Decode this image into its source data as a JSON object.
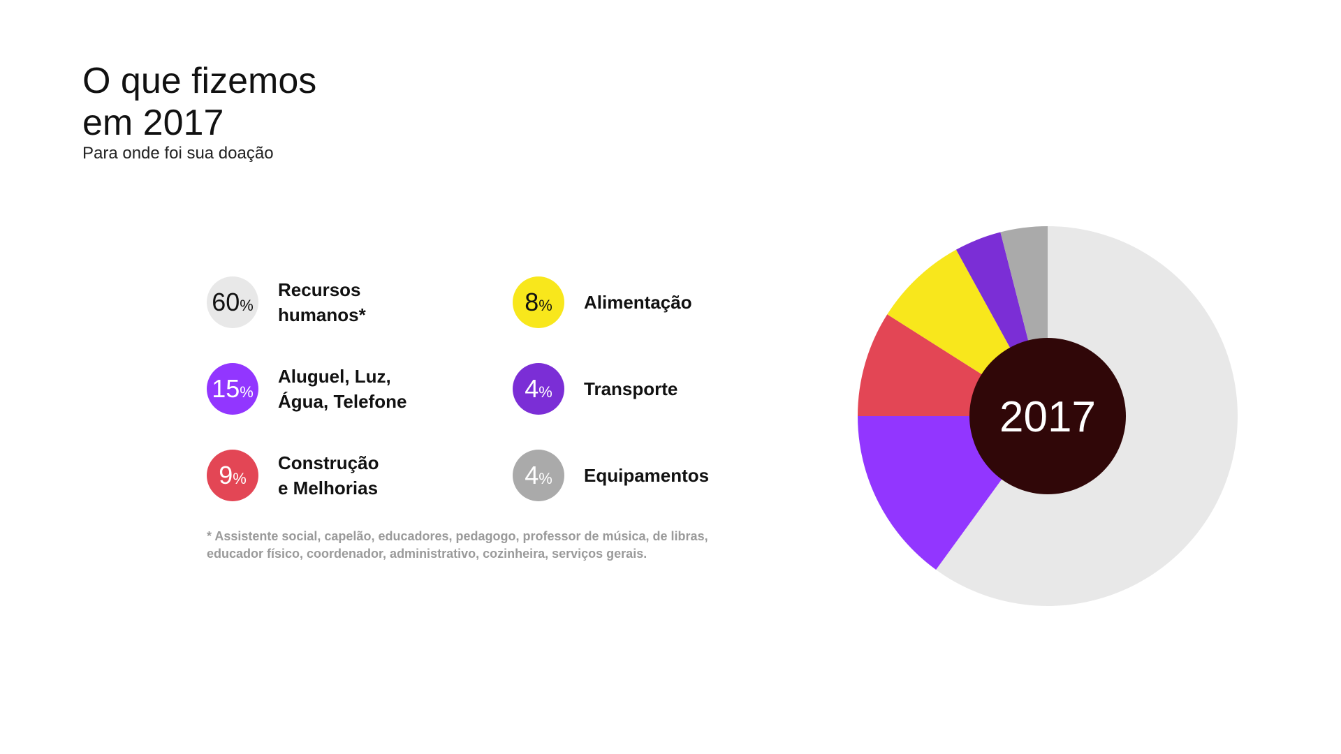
{
  "title": "O que fizemos\nem 2017",
  "subtitle": "Para onde foi sua doação",
  "center_label": "2017",
  "footnote": "* Assistente social, capelão, educadores, pedagogo, professor de música, de libras, educador físico, coordenador, administrativo, cozinheira, serviços gerais.",
  "legend": [
    {
      "value": "60",
      "unit": "%",
      "label": "Recursos\nhumanos*",
      "color": "#e8e8e8",
      "text_color": "#111111"
    },
    {
      "value": "15",
      "unit": "%",
      "label": "Aluguel, Luz,\nÁgua, Telefone",
      "color": "#9236ff",
      "text_color": "#ffffff"
    },
    {
      "value": "9",
      "unit": "%",
      "label": "Construção\ne Melhorias",
      "color": "#e34655",
      "text_color": "#ffffff"
    },
    {
      "value": "8",
      "unit": "%",
      "label": "Alimentação",
      "color": "#f8e71c",
      "text_color": "#111111"
    },
    {
      "value": "4",
      "unit": "%",
      "label": "Transporte",
      "color": "#7b2ed6",
      "text_color": "#ffffff"
    },
    {
      "value": "4",
      "unit": "%",
      "label": "Equipamentos",
      "color": "#aaaaaa",
      "text_color": "#ffffff"
    }
  ],
  "chart_data": {
    "type": "pie",
    "title": "",
    "center_label": "2017",
    "categories": [
      "Recursos humanos*",
      "Aluguel, Luz, Água, Telefone",
      "Construção e Melhorias",
      "Alimentação",
      "Transporte",
      "Equipamentos"
    ],
    "values": [
      60,
      15,
      9,
      8,
      4,
      4
    ],
    "colors": [
      "#e8e8e8",
      "#9236ff",
      "#e34655",
      "#f8e71c",
      "#7b2ed6",
      "#aaaaaa"
    ],
    "center_color": "#300708"
  }
}
